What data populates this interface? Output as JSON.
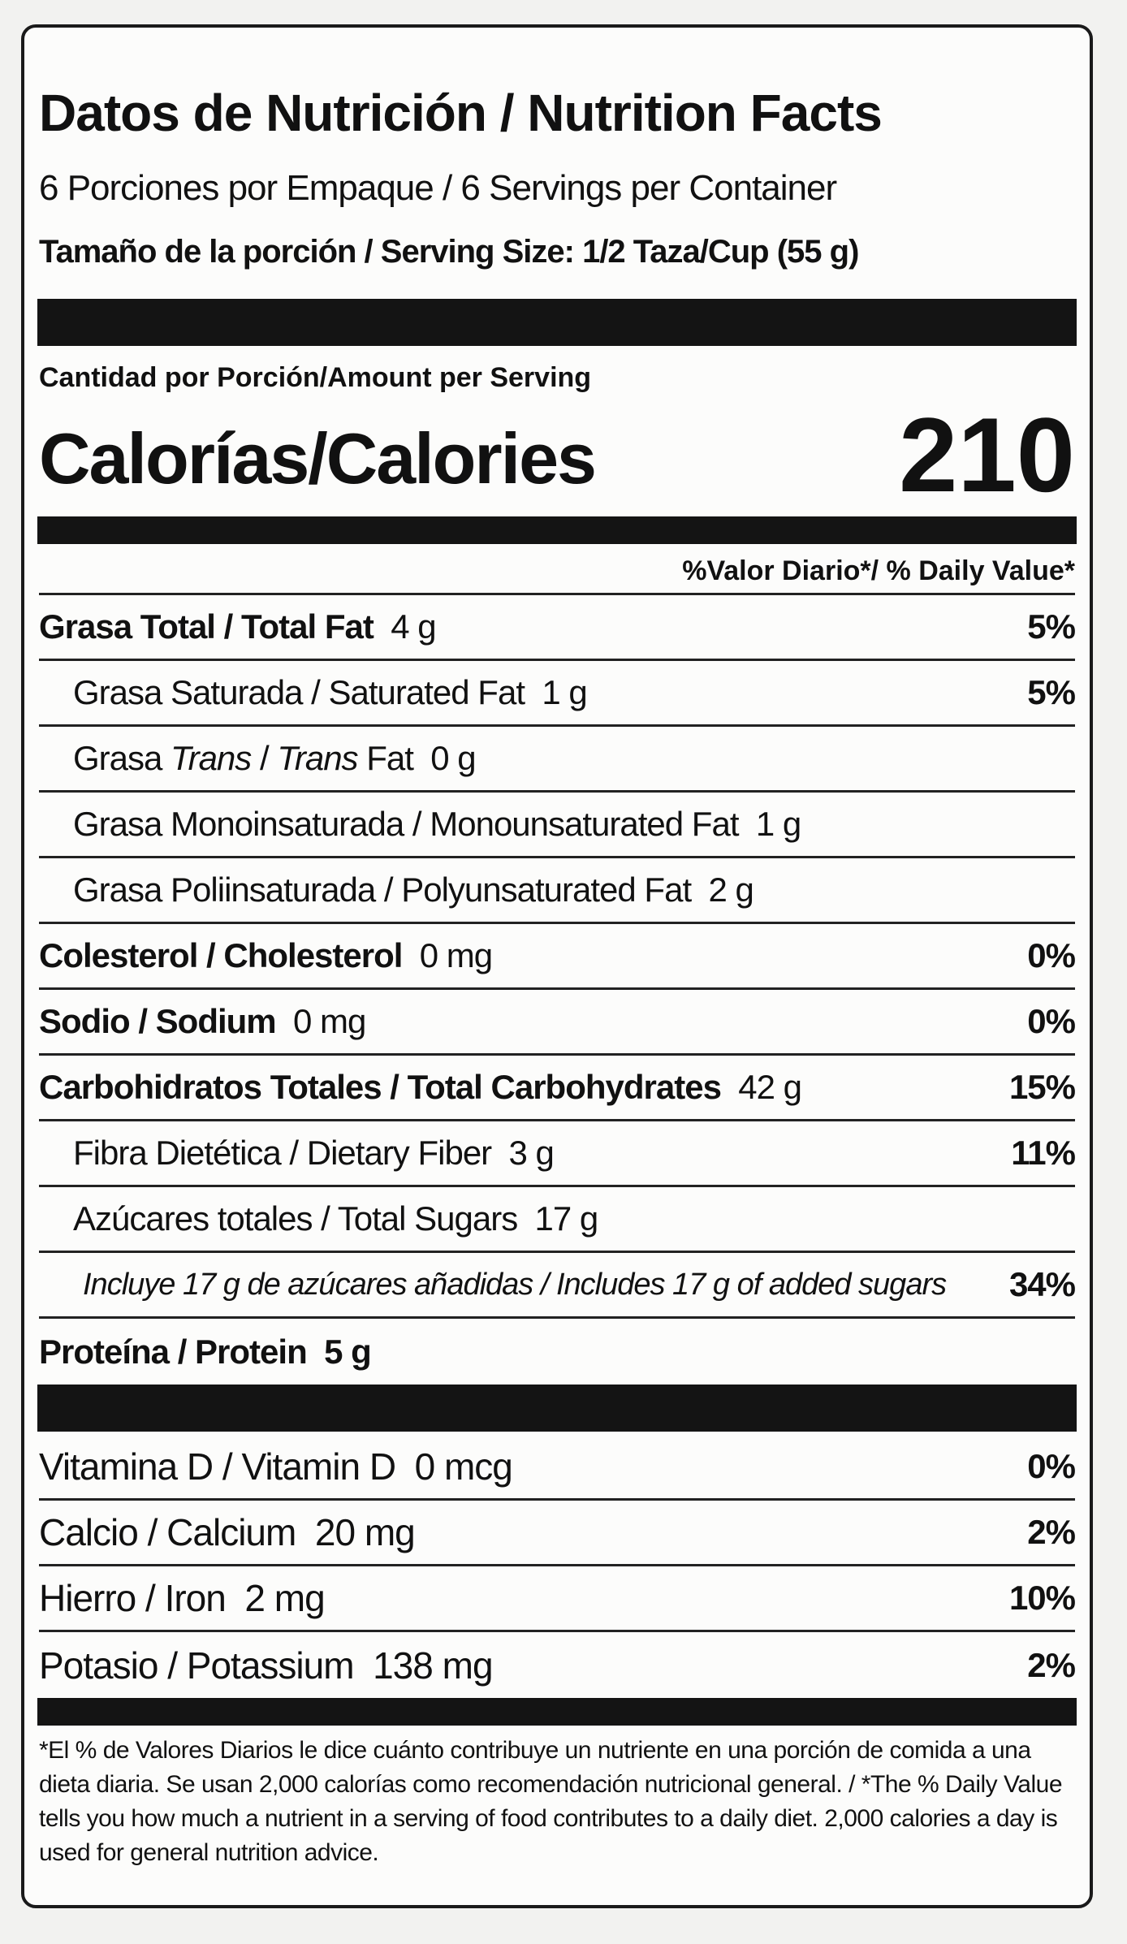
{
  "title": "Datos de Nutrición / Nutrition Facts",
  "servings_per_container": "6 Porciones por Empaque / 6 Servings per Container",
  "serving_size": "Tamaño de la porción / Serving Size: 1/2 Taza/Cup (55 g)",
  "amount_per_serving": "Cantidad por Porción/Amount per Serving",
  "calories_label": "Calorías/Calories",
  "calories_value": "210",
  "daily_value_header": "%Valor Diario*/ % Daily Value*",
  "nutrients": [
    {
      "label": "Grasa Total / Total Fat",
      "amount": "4 g",
      "dv": "5%"
    },
    {
      "label": "Grasa Saturada / Saturated Fat",
      "amount": "1 g",
      "dv": "5%"
    },
    {
      "label_a": "Grasa ",
      "label_b": "Trans",
      "label_c": " / ",
      "label_d": "Trans",
      "label_e": " Fat",
      "amount": "0 g",
      "dv": ""
    },
    {
      "label": "Grasa Monoinsaturada / Monounsaturated Fat",
      "amount": "1 g",
      "dv": ""
    },
    {
      "label": "Grasa Poliinsaturada / Polyunsaturated Fat",
      "amount": "2 g",
      "dv": ""
    },
    {
      "label": "Colesterol / Cholesterol",
      "amount": "0 mg",
      "dv": "0%"
    },
    {
      "label": "Sodio / Sodium",
      "amount": "0 mg",
      "dv": "0%"
    },
    {
      "label": "Carbohidratos Totales / Total Carbohydrates",
      "amount": "42 g",
      "dv": "15%"
    },
    {
      "label": "Fibra Dietética / Dietary Fiber",
      "amount": "3 g",
      "dv": "11%"
    },
    {
      "label": "Azúcares totales / Total Sugars",
      "amount": "17 g",
      "dv": ""
    },
    {
      "label": "Incluye 17 g de azúcares añadidas / Includes 17 g of added sugars",
      "amount": "",
      "dv": "34%"
    },
    {
      "label": "Proteína / Protein",
      "amount": "5 g",
      "dv": ""
    }
  ],
  "vitamins": [
    {
      "label": "Vitamina D / Vitamin D",
      "amount": "0 mcg",
      "dv": "0%"
    },
    {
      "label": "Calcio / Calcium",
      "amount": "20 mg",
      "dv": "2%"
    },
    {
      "label": "Hierro / Iron",
      "amount": "2 mg",
      "dv": "10%"
    },
    {
      "label": "Potasio / Potassium",
      "amount": "138 mg",
      "dv": "2%"
    }
  ],
  "footnote": "*El % de Valores Diarios le dice cuánto contribuye un nutriente en una porción de comida a una dieta diaria. Se usan 2,000 calorías como recomendación nutricional general. / *The % Daily Value tells you how much a nutrient in a serving of food contributes to a daily diet. 2,000 calories a day is used for general nutrition advice."
}
